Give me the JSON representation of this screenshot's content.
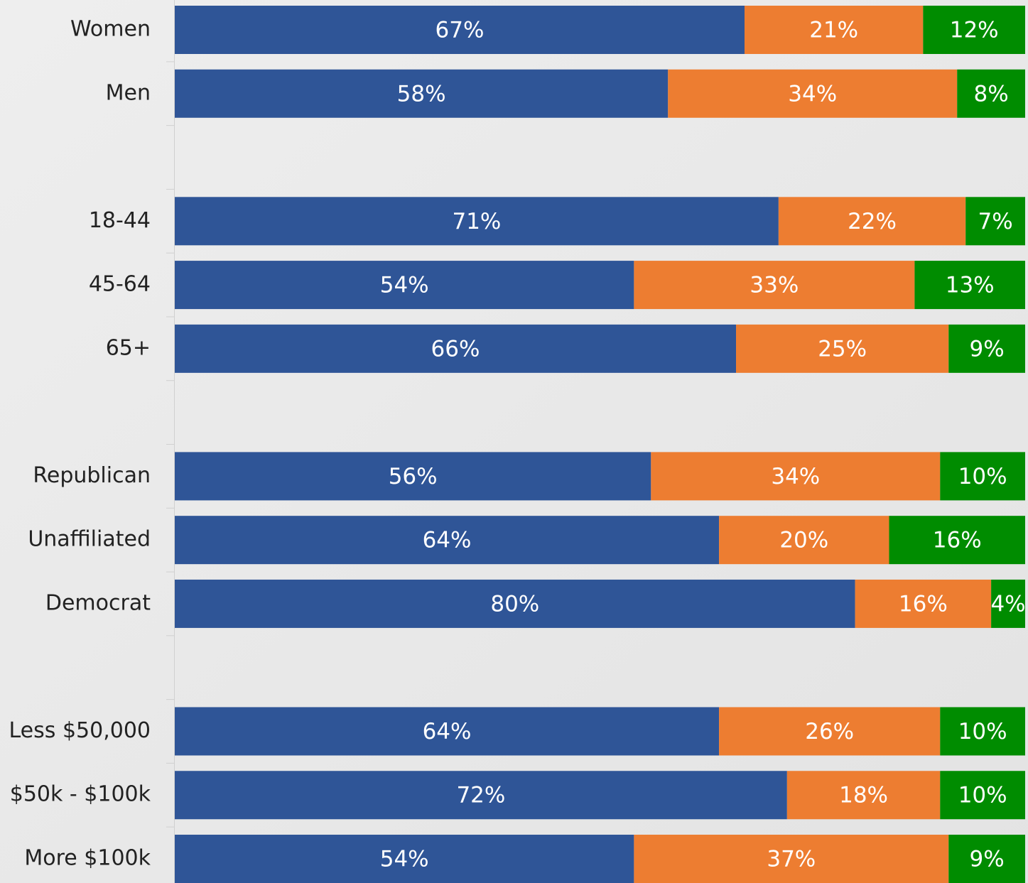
{
  "chart_data": {
    "type": "stacked_bar_horizontal",
    "categories": [
      "Women",
      "Men",
      null,
      "18-44",
      "45-64",
      "65+",
      null,
      "Republican",
      "Unaffiliated",
      "Democrat",
      null,
      "Less $50,000",
      "$50k - $100k",
      "More $100k"
    ],
    "xlim": [
      0,
      100
    ],
    "series": [
      {
        "color": "#2f5597",
        "values": [
          67,
          58,
          null,
          71,
          54,
          66,
          null,
          56,
          64,
          80,
          null,
          64,
          72,
          54
        ],
        "value_labels": [
          "67%",
          "58%",
          null,
          "71%",
          "54%",
          "66%",
          null,
          "56%",
          "64%",
          "80%",
          null,
          "64%",
          "72%",
          "54%"
        ]
      },
      {
        "color": "#ed7d31",
        "values": [
          21,
          34,
          null,
          22,
          33,
          25,
          null,
          34,
          20,
          16,
          null,
          26,
          18,
          37
        ],
        "value_labels": [
          "21%",
          "34%",
          null,
          "22%",
          "33%",
          "25%",
          null,
          "34%",
          "20%",
          "16%",
          null,
          "26%",
          "18%",
          "37%"
        ]
      },
      {
        "color": "#008c00",
        "values": [
          12,
          8,
          null,
          7,
          13,
          9,
          null,
          10,
          16,
          4,
          null,
          10,
          10,
          9
        ],
        "value_labels": [
          "12%",
          "8%",
          null,
          "7%",
          "13%",
          "9%",
          null,
          "10%",
          "16%",
          "4%",
          null,
          "10%",
          "10%",
          "9%"
        ]
      }
    ]
  }
}
